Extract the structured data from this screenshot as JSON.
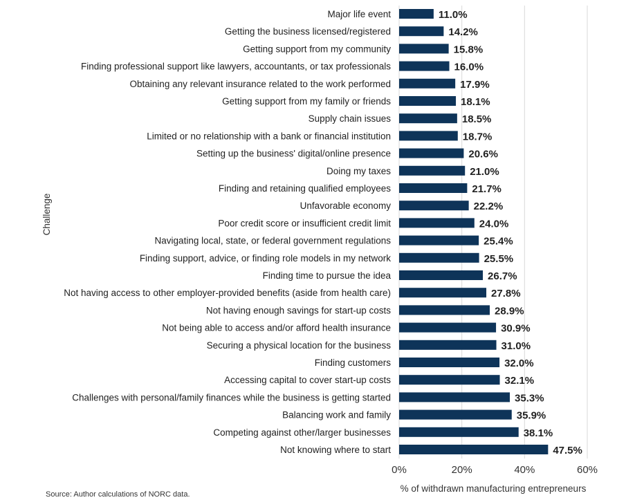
{
  "chart_data": {
    "type": "bar",
    "orientation": "horizontal",
    "categories": [
      "Major life event",
      "Getting the business licensed/registered",
      "Getting support from my community",
      "Finding professional support like lawyers, accountants, or tax professionals",
      "Obtaining any relevant insurance related to the work performed",
      "Getting support from my family or friends",
      "Supply chain issues",
      "Limited or no relationship with a bank or financial institution",
      "Setting up the business' digital/online presence",
      "Doing my taxes",
      "Finding and retaining qualified employees",
      "Unfavorable economy",
      "Poor credit score or insufficient credit limit",
      "Navigating local, state, or federal government regulations",
      "Finding support, advice, or finding role models in my network",
      "Finding time to pursue the idea",
      "Not having access to other employer-provided benefits (aside from health care)",
      "Not having enough savings for start-up costs",
      "Not being able to access and/or afford health insurance",
      "Securing a physical location for the business",
      "Finding customers",
      "Accessing capital to cover start-up costs",
      "Challenges with personal/family finances while the business is getting started",
      "Balancing work and family",
      "Competing against other/larger businesses",
      "Not knowing where to start"
    ],
    "values": [
      11.0,
      14.2,
      15.8,
      16.0,
      17.9,
      18.1,
      18.5,
      18.7,
      20.6,
      21.0,
      21.7,
      22.2,
      24.0,
      25.4,
      25.5,
      26.7,
      27.8,
      28.9,
      30.9,
      31.0,
      32.0,
      32.1,
      35.3,
      35.9,
      38.1,
      47.5
    ],
    "value_labels": [
      "11.0%",
      "14.2%",
      "15.8%",
      "16.0%",
      "17.9%",
      "18.1%",
      "18.5%",
      "18.7%",
      "20.6%",
      "21.0%",
      "21.7%",
      "22.2%",
      "24.0%",
      "25.4%",
      "25.5%",
      "26.7%",
      "27.8%",
      "28.9%",
      "30.9%",
      "31.0%",
      "32.0%",
      "32.1%",
      "35.3%",
      "35.9%",
      "38.1%",
      "47.5%"
    ],
    "xlabel": "% of withdrawn manufacturing entrepreneurs",
    "ylabel": "Challenge",
    "xlim": [
      0,
      60
    ],
    "x_ticks": [
      "0%",
      "20%",
      "40%",
      "60%"
    ],
    "grid": true,
    "bar_color": "#0e3459",
    "grid_color": "#d9d9d9"
  },
  "source": "Source: Author calculations of NORC data."
}
